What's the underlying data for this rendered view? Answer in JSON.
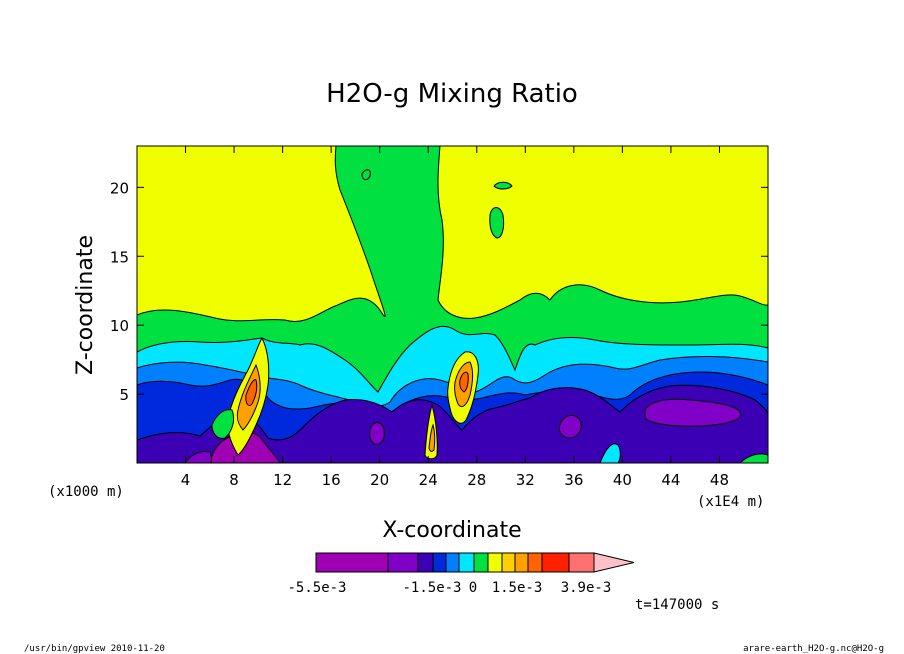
{
  "chart_data": {
    "type": "heatmap",
    "title": "H2O-g Mixing Ratio",
    "xlabel": "X-coordinate",
    "ylabel": "Z-coordinate",
    "x_unit_label": "(x1000 m)",
    "x_scale_label": "(x1E4 m)",
    "xlim": [
      0,
      52
    ],
    "ylim": [
      0,
      23
    ],
    "x_ticks": [
      4,
      8,
      12,
      16,
      20,
      24,
      28,
      32,
      36,
      40,
      44,
      48
    ],
    "x_tick_labels": [
      "4",
      "8",
      "12",
      "16",
      "20",
      "24",
      "28",
      "32",
      "36",
      "40",
      "44",
      "48"
    ],
    "y_ticks": [
      5,
      10,
      15,
      20
    ],
    "y_tick_labels": [
      "5",
      "10",
      "15",
      "20"
    ],
    "colorbar": {
      "colors": [
        "#a000b4",
        "#8000c8",
        "#3c00b4",
        "#0028dc",
        "#0080ff",
        "#00e6ff",
        "#00e040",
        "#f0ff00",
        "#ffd000",
        "#ffa000",
        "#ff6400",
        "#ff2000",
        "#ff7070"
      ],
      "over_color": "#ffc0c8",
      "labels": [
        "-5.5e-3",
        "-1.5e-3",
        "0",
        "1.5e-3",
        "3.9e-3"
      ]
    },
    "background_value": "yellow",
    "time_label": "t=147000 s"
  },
  "footer": {
    "left": "/usr/bin/gpview   2010-11-20",
    "right": "arare-earth_H2O-g.nc@H2O-g"
  }
}
